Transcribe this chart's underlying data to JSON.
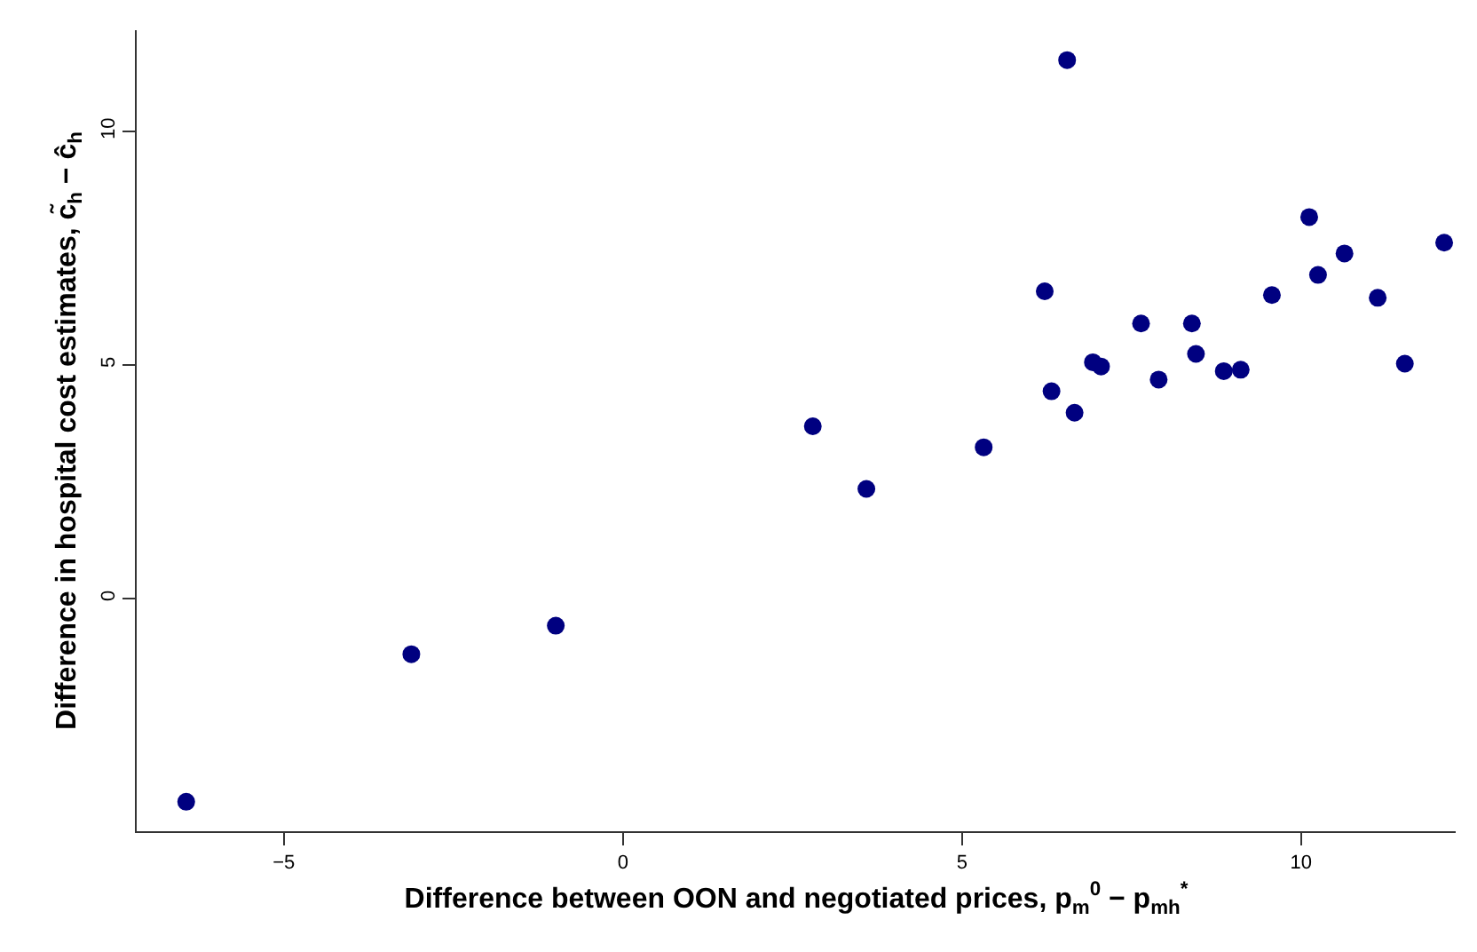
{
  "chart_data": {
    "type": "scatter",
    "xlabel": "Difference between OON and negotiated prices, p$_{m}$$^{0}$ − p$_{mh}$$^{*}$",
    "ylabel": "Difference in hospital cost estimates, c̃$_{h}$ − ĉ$_{h}$",
    "x": [
      -6.44,
      -3.12,
      -0.99,
      2.8,
      3.59,
      5.32,
      6.55,
      6.22,
      6.32,
      6.66,
      6.93,
      7.05,
      7.64,
      7.9,
      8.39,
      8.45,
      8.86,
      9.11,
      9.57,
      10.12,
      10.25,
      10.64,
      11.13,
      11.53,
      12.11
    ],
    "series": [
      {
        "color": "#000080",
        "values": [
          -4.35,
          -1.19,
          -0.58,
          3.69,
          2.35,
          3.24,
          11.53,
          6.58,
          4.44,
          3.98,
          5.06,
          4.97,
          5.89,
          4.69,
          5.89,
          5.24,
          4.87,
          4.9,
          6.5,
          8.17,
          6.93,
          7.39,
          6.44,
          5.03,
          7.62
        ]
      }
    ],
    "xlim": [
      -7.17,
      12.28
    ],
    "ylim": [
      -4.98,
      12.17
    ],
    "xticks": [
      -5,
      0,
      5,
      10
    ],
    "yticks": [
      0,
      5,
      10
    ],
    "marker": "circle"
  }
}
